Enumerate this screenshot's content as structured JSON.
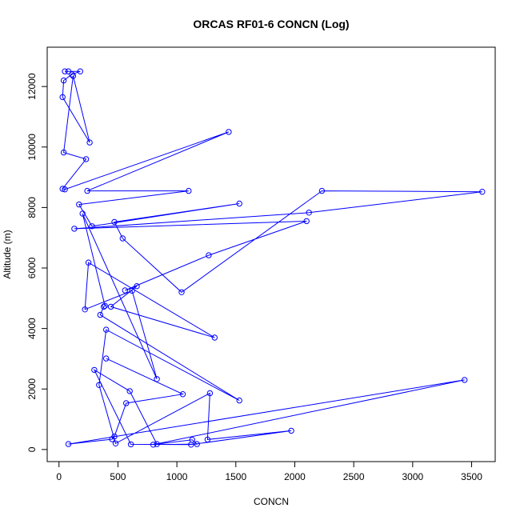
{
  "chart_data": {
    "type": "scatter",
    "title": "ORCAS RF01-6 CONCN (Log)",
    "xlabel": "CONCN",
    "ylabel": "Altitude (m)",
    "xlim": [
      -100,
      3700
    ],
    "ylim": [
      -400,
      13300
    ],
    "xticks": [
      0,
      500,
      1000,
      1500,
      2000,
      2500,
      3000,
      3500
    ],
    "yticks": [
      0,
      2000,
      4000,
      6000,
      8000,
      10000,
      12000
    ],
    "grid": false,
    "legend": "none",
    "color": "#0000ff",
    "series": [
      {
        "x": [
          50,
          80,
          180,
          110,
          40,
          30,
          260,
          120,
          40,
          230,
          30,
          50,
          1440,
          240,
          1100,
          170,
          280,
          1530,
          470,
          540,
          1040,
          2230,
          3590,
          2120,
          130,
          2100,
          1270,
          560,
          660,
          440,
          1320,
          250,
          220,
          620,
          830,
          200,
          390,
          380,
          350,
          1530,
          400,
          340,
          480,
          1280,
          1260,
          1970,
          1120,
          610,
          300,
          600,
          830,
          1130,
          1170,
          800,
          3440,
          80,
          450,
          470,
          570,
          1050,
          400
        ],
        "y": [
          12500,
          12500,
          12500,
          12400,
          12200,
          11650,
          10150,
          12350,
          9820,
          9600,
          8620,
          8600,
          10500,
          8550,
          8550,
          8100,
          7380,
          8130,
          7520,
          6980,
          5200,
          8550,
          8520,
          7830,
          7300,
          7550,
          6420,
          5260,
          5400,
          4720,
          3700,
          6180,
          4630,
          5250,
          2330,
          7800,
          4750,
          4720,
          4450,
          1620,
          3960,
          2130,
          200,
          1860,
          330,
          620,
          160,
          170,
          2630,
          1930,
          180,
          320,
          180,
          160,
          2300,
          180,
          340,
          430,
          1530,
          1830,
          3010
        ]
      }
    ]
  }
}
